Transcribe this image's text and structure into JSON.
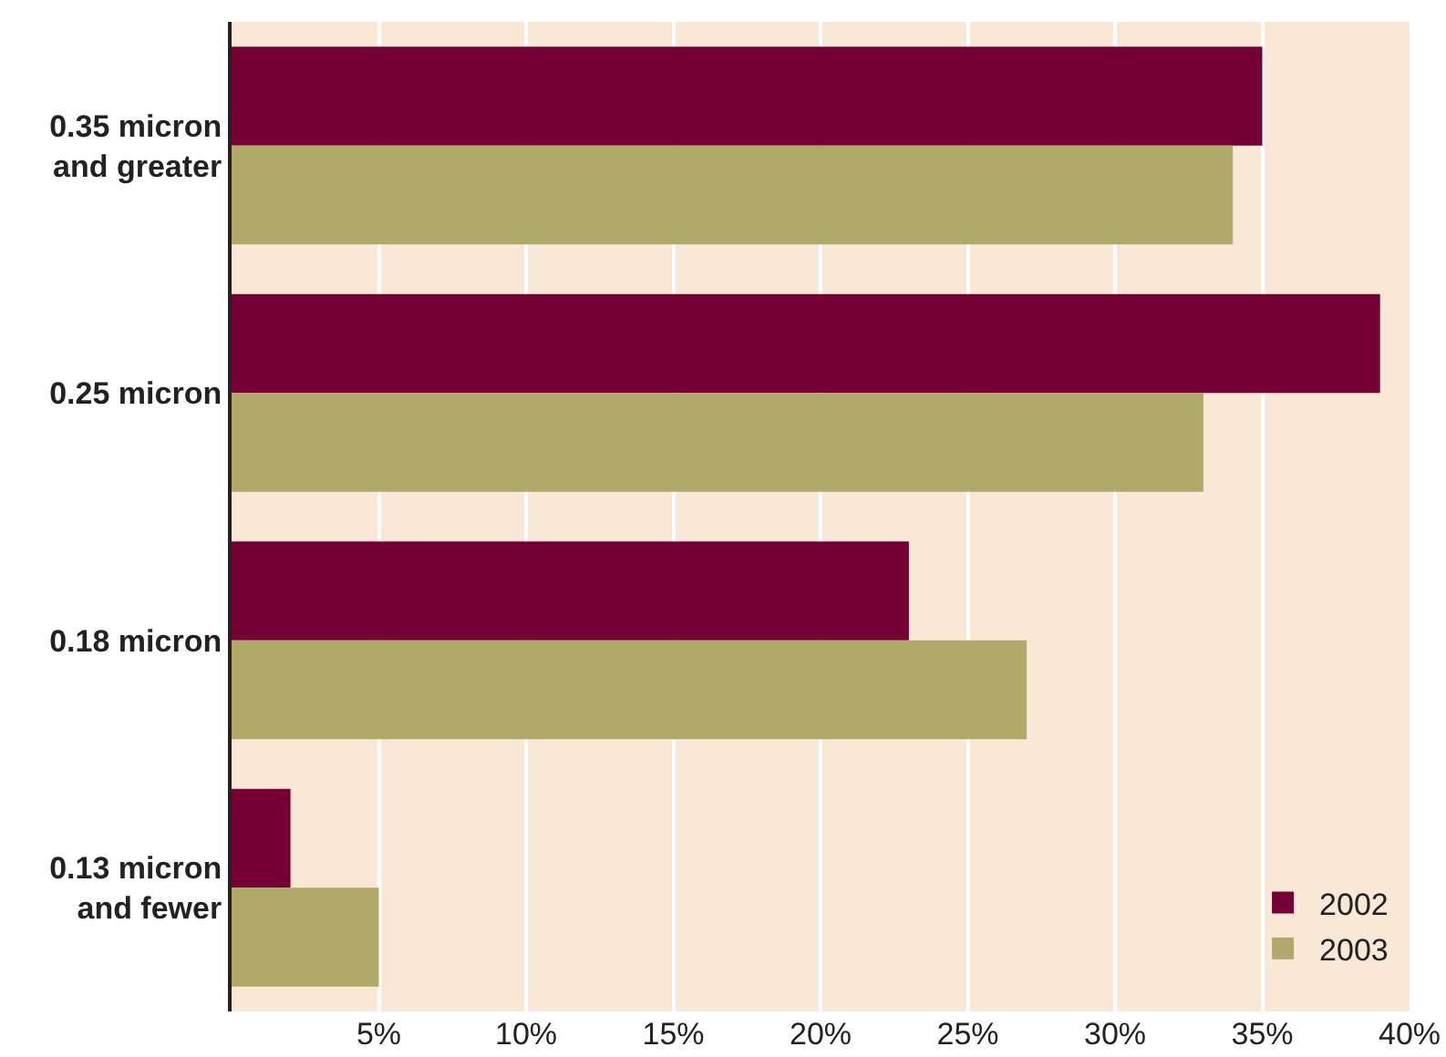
{
  "chart_data": {
    "type": "bar",
    "orientation": "horizontal",
    "categories": [
      "0.35 micron and greater",
      "0.25 micron",
      "0.18 micron",
      "0.13 micron and fewer"
    ],
    "series": [
      {
        "name": "2002",
        "color": "#740035",
        "values": [
          35,
          39,
          23,
          2
        ]
      },
      {
        "name": "2003",
        "color": "#b0aa6a",
        "values": [
          34,
          33,
          27,
          5
        ]
      }
    ],
    "xlim": [
      0,
      40
    ],
    "xticks": [
      {
        "value": 0,
        "label": null
      },
      {
        "value": 5,
        "label": "5%"
      },
      {
        "value": 10,
        "label": "10%"
      },
      {
        "value": 15,
        "label": "15%"
      },
      {
        "value": 20,
        "label": "20%"
      },
      {
        "value": 25,
        "label": "25%"
      },
      {
        "value": 30,
        "label": "30%"
      },
      {
        "value": 35,
        "label": "35%"
      },
      {
        "value": 40,
        "label": "40%"
      }
    ],
    "grid": "x",
    "legend": "bottom right"
  }
}
